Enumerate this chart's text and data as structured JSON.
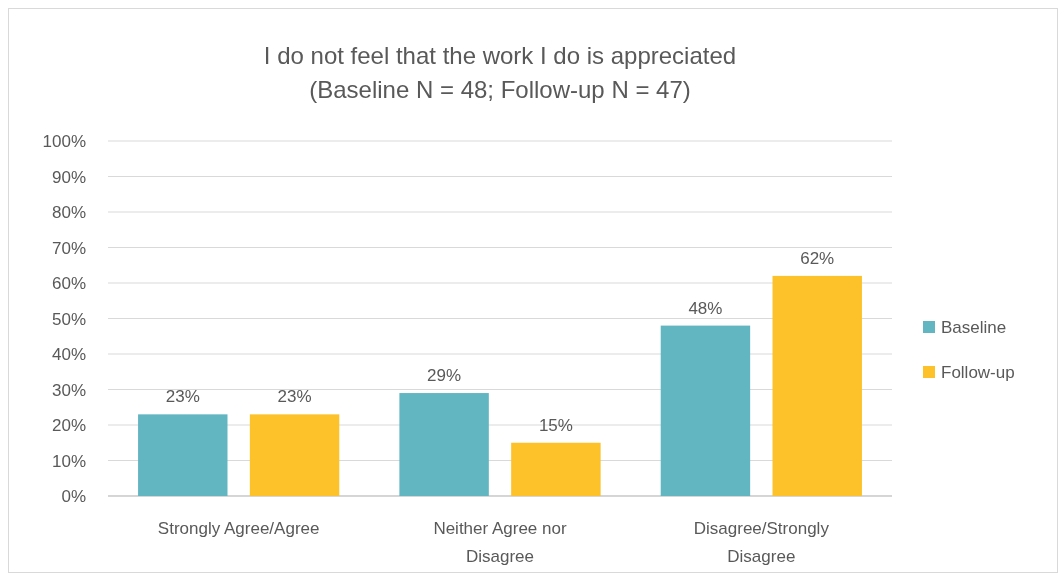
{
  "chart_data": {
    "type": "bar",
    "title": "I do not feel that the work I do is appreciated",
    "subtitle": "(Baseline N = 48; Follow-up N = 47)",
    "categories": [
      "Strongly Agree/Agree",
      "Neither Agree nor Disagree",
      "Disagree/Strongly Disagree"
    ],
    "series": [
      {
        "name": "Baseline",
        "color": "#62b6c2",
        "values": [
          23,
          29,
          48
        ],
        "value_labels": [
          "23%",
          "29%",
          "48%"
        ]
      },
      {
        "name": "Follow-up",
        "color": "#fdc12a",
        "values": [
          23,
          15,
          62
        ],
        "value_labels": [
          "23%",
          "15%",
          "62%"
        ]
      }
    ],
    "ylim": [
      0,
      100
    ],
    "yticks": [
      {
        "value": 0,
        "label": "0%"
      },
      {
        "value": 10,
        "label": "10%"
      },
      {
        "value": 20,
        "label": "20%"
      },
      {
        "value": 30,
        "label": "30%"
      },
      {
        "value": 40,
        "label": "40%"
      },
      {
        "value": 50,
        "label": "50%"
      },
      {
        "value": 60,
        "label": "60%"
      },
      {
        "value": 70,
        "label": "70%"
      },
      {
        "value": 80,
        "label": "80%"
      },
      {
        "value": 90,
        "label": "90%"
      },
      {
        "value": 100,
        "label": "100%"
      }
    ],
    "grid": "y",
    "legend": "right"
  }
}
